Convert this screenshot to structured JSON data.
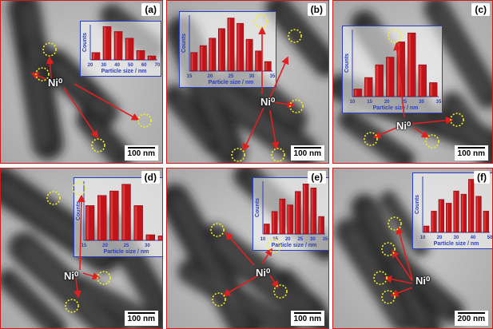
{
  "figure": {
    "nickel_label": "Ni⁰",
    "marker_color": "#f5f01a",
    "arrow_color": "#e02020",
    "bar_color": "#c0141a",
    "inset_color": "#2a3fc0",
    "border_color": "#d01818"
  },
  "panels": [
    {
      "id": "a",
      "letter": "(a)",
      "scale": "100 nm",
      "chart": {
        "type": "bar",
        "ylabel": "Counts",
        "xlabel": "Particle size / nm",
        "ticks": [
          "20",
          "30",
          "40",
          "50",
          "60",
          "70"
        ],
        "values": [
          0.22,
          1.0,
          0.85,
          0.65,
          0.28,
          0.12
        ]
      }
    },
    {
      "id": "b",
      "letter": "(b)",
      "scale": "100 nm",
      "chart": {
        "type": "bar",
        "ylabel": "Counts",
        "xlabel": "Particle size / nm",
        "ticks": [
          "15",
          "20",
          "25",
          "30",
          "35"
        ],
        "values": [
          0.35,
          0.48,
          0.62,
          0.8,
          1.0,
          0.9,
          0.6,
          0.38,
          0.18
        ]
      }
    },
    {
      "id": "c",
      "letter": "(c)",
      "scale": "100 nm",
      "chart": {
        "type": "bar",
        "ylabel": "Counts",
        "xlabel": "Particle size / nm",
        "ticks": [
          "10",
          "15",
          "20",
          "25",
          "30",
          "35"
        ],
        "values": [
          0.12,
          0.3,
          0.5,
          0.62,
          0.86,
          1.0,
          0.5,
          0.22
        ]
      }
    },
    {
      "id": "d",
      "letter": "(d)",
      "scale": "100 nm",
      "chart": {
        "type": "bar",
        "ylabel": "Counts",
        "xlabel": "Particle size / nm",
        "ticks": [
          "15",
          "20",
          "25",
          "30",
          "35"
        ],
        "values": [
          0.62,
          0.8,
          0.88,
          1.0,
          0.62,
          0.1,
          0.08
        ]
      }
    },
    {
      "id": "e",
      "letter": "(e)",
      "scale": "100 nm",
      "chart": {
        "type": "bar",
        "ylabel": "Counts",
        "xlabel": "Particle size / nm",
        "ticks": [
          "10",
          "15",
          "20",
          "25",
          "30",
          "35"
        ],
        "values": [
          0.2,
          0.45,
          0.7,
          0.58,
          0.85,
          1.0,
          0.92,
          0.35
        ]
      }
    },
    {
      "id": "f",
      "letter": "(f)",
      "scale": "200 nm",
      "chart": {
        "type": "bar",
        "ylabel": "Counts",
        "xlabel": "Particle size / nm",
        "ticks": [
          "10",
          "20",
          "30",
          "40",
          "50"
        ],
        "values": [
          0.12,
          0.4,
          0.62,
          0.55,
          0.78,
          0.72,
          1.0,
          0.68,
          0.4
        ]
      }
    }
  ]
}
